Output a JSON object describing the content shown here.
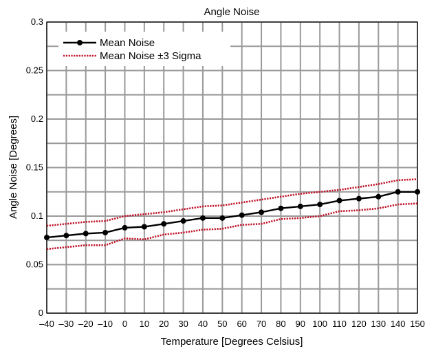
{
  "chart_data": {
    "type": "line",
    "title": "Angle Noise",
    "xlabel": "Temperature [Degrees Celsius]",
    "ylabel": "Angle Noise [Degrees]",
    "x": [
      -40,
      -30,
      -20,
      -10,
      0,
      10,
      20,
      30,
      40,
      50,
      60,
      70,
      80,
      90,
      100,
      110,
      120,
      130,
      140,
      150
    ],
    "x_tick_labels": [
      "–40",
      "–30",
      "–20",
      "–10",
      "0",
      "10",
      "20",
      "30",
      "40",
      "50",
      "60",
      "70",
      "80",
      "90",
      "100",
      "110",
      "120",
      "130",
      "140",
      "150"
    ],
    "y_tick_values": [
      0,
      0.05,
      0.1,
      0.15,
      0.2,
      0.25,
      0.3
    ],
    "y_tick_labels": [
      "0",
      "0.05",
      "0.1",
      "0.15",
      "0.2",
      "0.25",
      "0.3"
    ],
    "xlim": [
      -40,
      150
    ],
    "ylim": [
      0,
      0.3
    ],
    "grid": true,
    "legend_position": "top-left",
    "series": [
      {
        "name": "Mean Noise",
        "color": "#000000",
        "style": "solid-with-markers",
        "values": [
          0.078,
          0.08,
          0.082,
          0.083,
          0.088,
          0.089,
          0.092,
          0.095,
          0.098,
          0.098,
          0.101,
          0.104,
          0.108,
          0.11,
          0.112,
          0.116,
          0.118,
          0.12,
          0.125,
          0.125
        ]
      },
      {
        "name": "Mean Noise ±3 Sigma",
        "color": "#c0142a",
        "style": "dotted",
        "legend": true,
        "values": [
          0.09,
          0.092,
          0.094,
          0.095,
          0.1,
          0.102,
          0.104,
          0.107,
          0.11,
          0.111,
          0.114,
          0.117,
          0.12,
          0.123,
          0.125,
          0.127,
          0.13,
          0.133,
          0.137,
          0.138
        ]
      },
      {
        "name": "",
        "color": "#c0142a",
        "style": "dotted",
        "legend": false,
        "values": [
          0.066,
          0.068,
          0.07,
          0.07,
          0.077,
          0.076,
          0.081,
          0.083,
          0.086,
          0.087,
          0.091,
          0.092,
          0.097,
          0.098,
          0.1,
          0.105,
          0.106,
          0.108,
          0.112,
          0.113
        ]
      }
    ]
  }
}
